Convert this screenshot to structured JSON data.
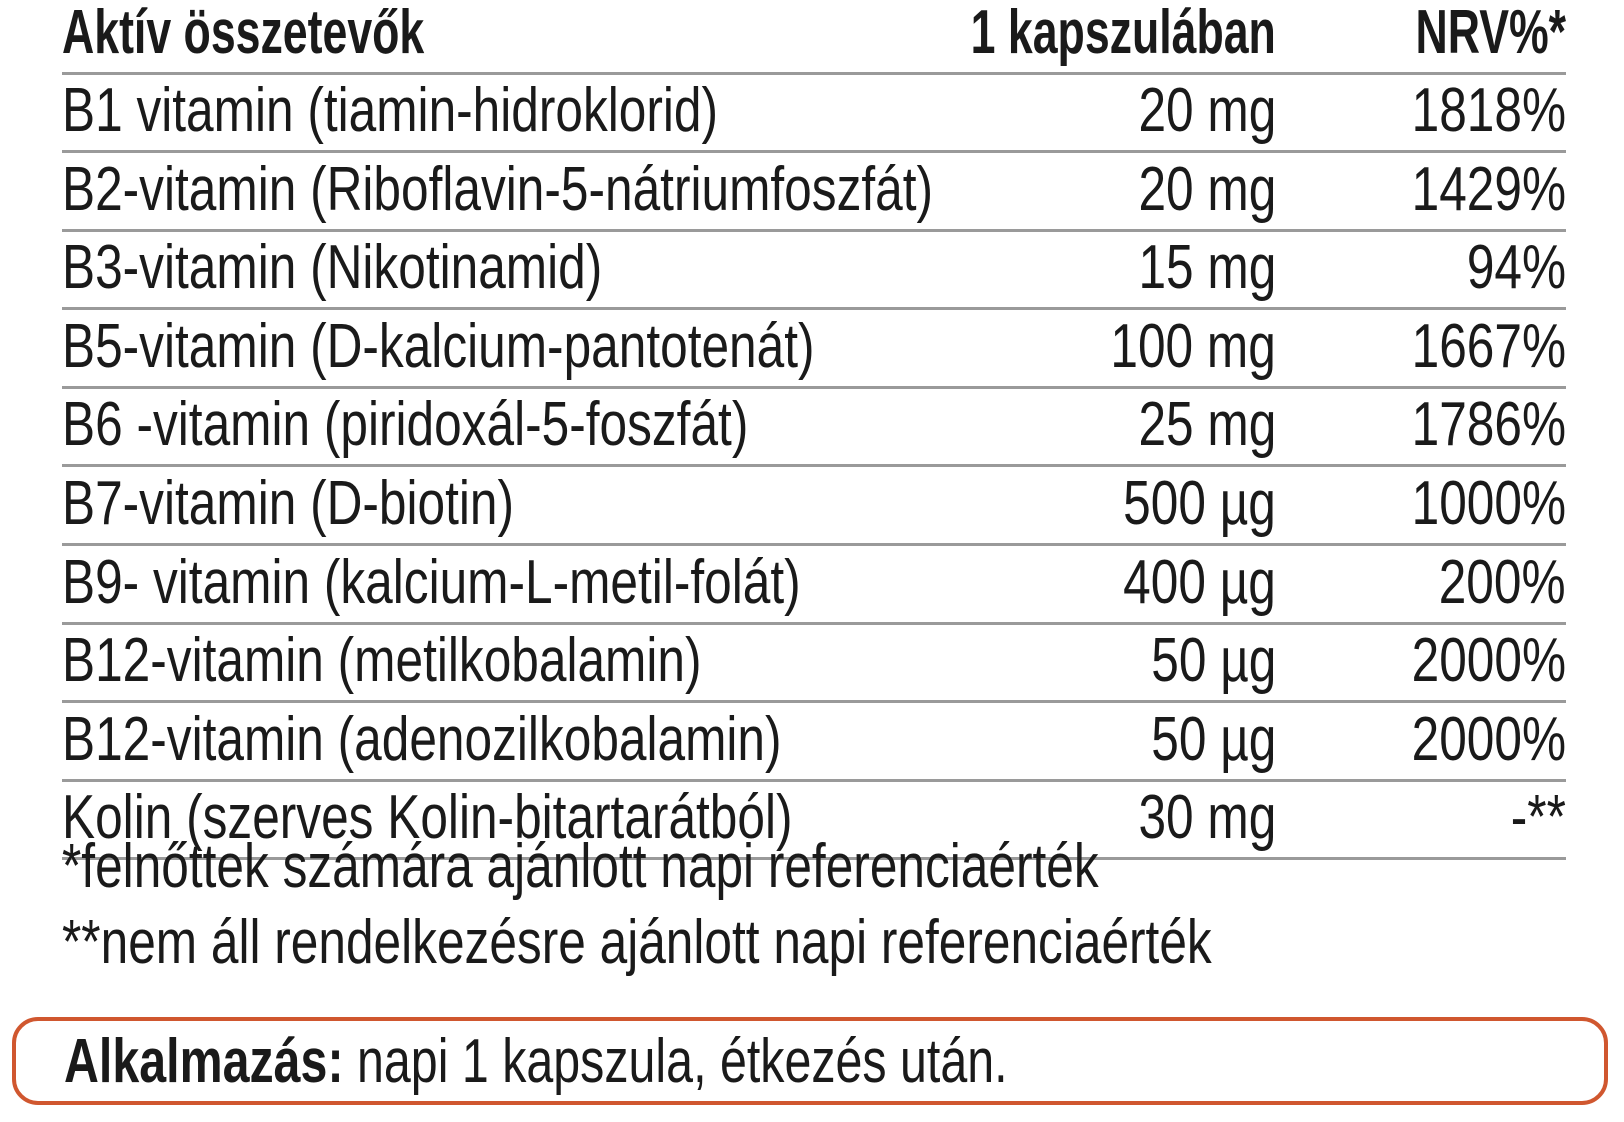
{
  "table": {
    "headers": {
      "ingredient": "Aktív összetevők",
      "amount": "1 kapszulában",
      "nrv": "NRV%*"
    },
    "rows": [
      {
        "ingredient": "B1 vitamin (tiamin-hidroklorid)",
        "amount": "20 mg",
        "nrv": "1818%"
      },
      {
        "ingredient": "B2-vitamin (Riboflavin-5-nátriumfoszfát)",
        "amount": "20 mg",
        "nrv": "1429%"
      },
      {
        "ingredient": "B3-vitamin (Nikotinamid)",
        "amount": "15 mg",
        "nrv": "94%"
      },
      {
        "ingredient": "B5-vitamin (D-kalcium-pantotenát)",
        "amount": "100 mg",
        "nrv": "1667%"
      },
      {
        "ingredient": "B6 -vitamin (piridoxál-5-foszfát)",
        "amount": "25 mg",
        "nrv": "1786%"
      },
      {
        "ingredient": "B7-vitamin (D-biotin)",
        "amount": "500 µg",
        "nrv": "1000%"
      },
      {
        "ingredient": "B9- vitamin (kalcium-L-metil-folát)",
        "amount": "400 µg",
        "nrv": "200%"
      },
      {
        "ingredient": "B12-vitamin (metilkobalamin)",
        "amount": "50 µg",
        "nrv": "2000%"
      },
      {
        "ingredient": "B12-vitamin (adenozilkobalamin)",
        "amount": "50 µg",
        "nrv": "2000%"
      },
      {
        "ingredient": "Kolin (szerves Kolin-bitartarátból)",
        "amount": "30 mg",
        "nrv": "-**"
      }
    ]
  },
  "footnotes": [
    "*felnőttek számára ajánlott napi referenciaérték",
    "**nem áll rendelkezésre ajánlott napi referenciaérték"
  ],
  "usage": {
    "label": "Alkalmazás:",
    "text": " napi 1 kapszula, étkezés után."
  },
  "colors": {
    "accent_border": "#D0572F",
    "divider": "#9a9a9a",
    "text": "#1a1a1a"
  }
}
